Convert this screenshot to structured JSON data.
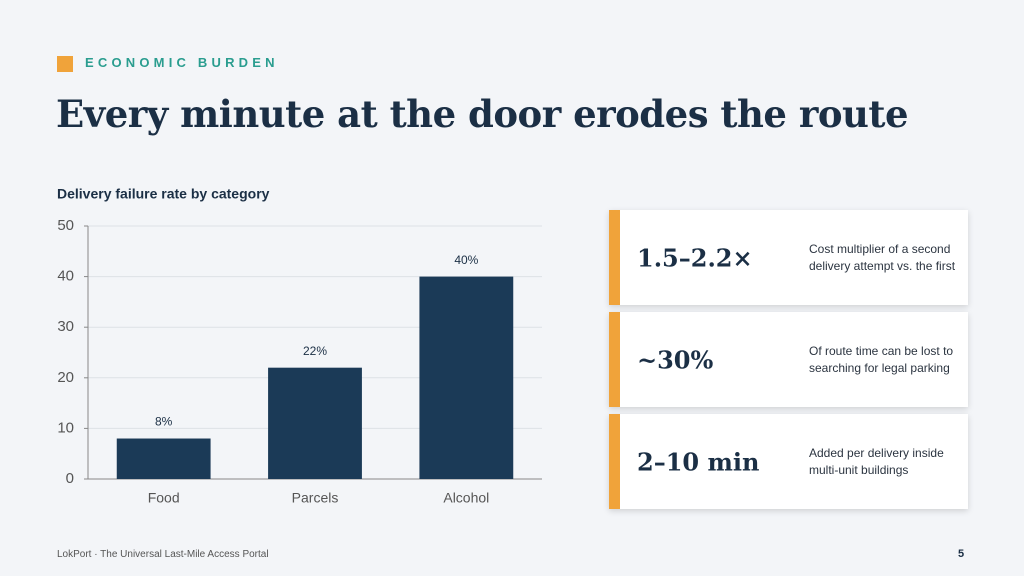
{
  "eyebrow": "ECONOMIC BURDEN",
  "title": "Every minute at the door erodes the route",
  "chart_data": {
    "type": "bar",
    "title": "Delivery failure rate by category",
    "categories": [
      "Food",
      "Parcels",
      "Alcohol"
    ],
    "values": [
      8,
      22,
      40
    ],
    "value_labels": [
      "8%",
      "22%",
      "40%"
    ],
    "color": "#1b3a57",
    "ylim": [
      0,
      50
    ],
    "yticks": [
      0,
      10,
      20,
      30,
      40,
      50
    ],
    "grid": true
  },
  "stats": [
    {
      "value": "1.5–2.2×",
      "description": "Cost multiplier of a second delivery attempt vs. the first"
    },
    {
      "value": "~30%",
      "description": "Of route time can be lost to searching for legal parking"
    },
    {
      "value": "2–10 min",
      "description": "Added per delivery inside multi-unit buildings"
    }
  ],
  "footer": "LokPort · The Universal Last-Mile Access Portal",
  "page_number": "5"
}
